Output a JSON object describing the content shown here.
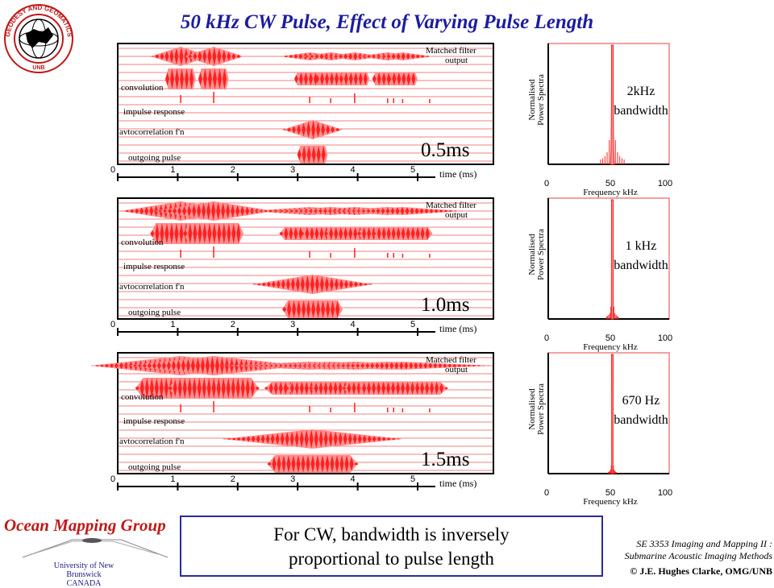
{
  "title": "50 kHz CW Pulse, Effect of Varying Pulse Length",
  "logo": {
    "ring_text": "GEODESY AND GEOMATICS ENGINEERING",
    "bottom_text": "UNB"
  },
  "trace_labels": {
    "matched_filter": "Matched filter",
    "matched_filter_2": "output",
    "convolution": "convolution",
    "impulse_response": "impulse response",
    "autocorrelation": "avtocorrelation f'n",
    "outgoing_pulse": "outgoing pulse"
  },
  "time_axis": {
    "label": "time (ms)",
    "ticks": [
      "0",
      "1",
      "2",
      "3",
      "4",
      "5"
    ]
  },
  "spectrum_axis": {
    "ylabel_1": "Normalised",
    "ylabel_2": "Power Spectra",
    "xlabel": "Frequency kHz",
    "ticks": [
      "0",
      "50",
      "100"
    ]
  },
  "panels": [
    {
      "pulse_length": "0.5ms",
      "pulse_ms": 0.5,
      "bandwidth_1": "2kHz",
      "bandwidth_2": "bandwidth",
      "bandwidth_khz": 2
    },
    {
      "pulse_length": "1.0ms",
      "pulse_ms": 1.0,
      "bandwidth_1": "1 kHz",
      "bandwidth_2": "bandwidth",
      "bandwidth_khz": 1
    },
    {
      "pulse_length": "1.5ms",
      "pulse_ms": 1.5,
      "bandwidth_1": "670 Hz",
      "bandwidth_2": "bandwidth",
      "bandwidth_khz": 0.67
    }
  ],
  "message": {
    "line1": "For CW, bandwidth is inversely",
    "line2": "proportional to pulse length"
  },
  "footer": {
    "group": "Ocean Mapping Group",
    "university": "University of New Brunswick",
    "country": "CANADA",
    "course_1": "SE 3353 Imaging and Mapping II :",
    "course_2": "Submarine Acoustic Imaging Methods",
    "copyright": "© J.E. Hughes Clarke, OMG/UNB"
  },
  "colors": {
    "title": "#1c1ca0",
    "signal": "#ff2020",
    "signal_light": "#ff9090",
    "grid_line": "#f08080",
    "box_border": "#2a2aa0"
  }
}
